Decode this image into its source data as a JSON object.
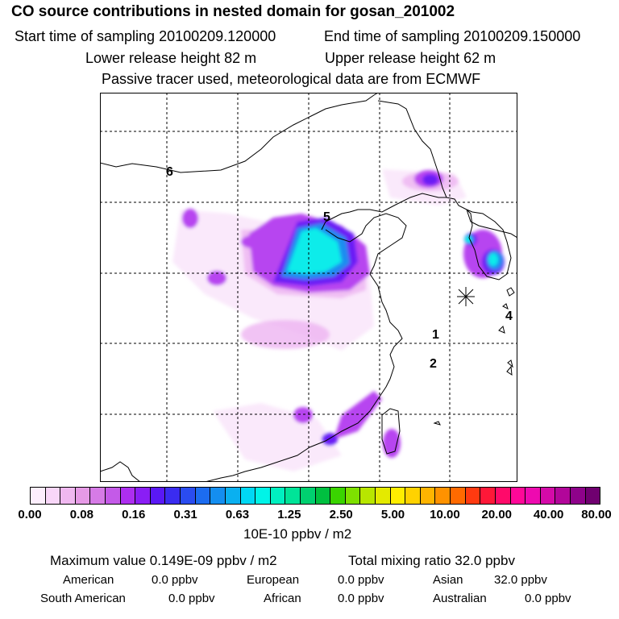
{
  "header": {
    "title": "CO  source contributions in nested domain for gosan_201002",
    "start_time": "Start time of sampling 20100209.120000",
    "end_time": "End time of sampling 20100209.150000",
    "lower_height": "Lower release height   82 m",
    "upper_height": "Upper release height   62 m",
    "tracer_note": "Passive tracer used, meteorological data are from ECMWF"
  },
  "map": {
    "region_labels": [
      "1",
      "2",
      "4",
      "5",
      "6"
    ],
    "station_marker": "receptor-star-icon"
  },
  "colorbar": {
    "colors": [
      "#fdeefd",
      "#f8d6f8",
      "#f0b8f0",
      "#e69ae6",
      "#d67be6",
      "#c45ae8",
      "#ad2ef0",
      "#8a1ef5",
      "#5a18f5",
      "#3a2cf0",
      "#2a4cf0",
      "#1c6cf0",
      "#148ef0",
      "#0ab0f0",
      "#00d8f4",
      "#00f4e8",
      "#00f0c0",
      "#00e498",
      "#00d070",
      "#00c040",
      "#3ad400",
      "#7ee000",
      "#b8e600",
      "#e4ea00",
      "#ffee00",
      "#ffd200",
      "#ffb400",
      "#ff9200",
      "#ff6a00",
      "#ff3a10",
      "#ff1838",
      "#ff0a6a",
      "#ff0898",
      "#ee0ab0",
      "#d40aa8",
      "#b2069a",
      "#8e028a",
      "#700070"
    ],
    "tick_labels": [
      "0.00",
      "0.08",
      "0.16",
      "0.31",
      "0.63",
      "1.25",
      "2.50",
      "5.00",
      "10.00",
      "20.00",
      "40.00",
      "80.00"
    ],
    "units": "10E-10 ppbv / m2"
  },
  "stats": {
    "max_value": "Maximum value  0.149E-09 ppbv / m2",
    "total_mixing": "Total mixing ratio       32.0 ppbv",
    "sources": [
      {
        "name": "American",
        "value": "0.0 ppbv"
      },
      {
        "name": "European",
        "value": "0.0 ppbv"
      },
      {
        "name": "Asian",
        "value": "32.0 ppbv"
      },
      {
        "name": "South American",
        "value": "0.0 ppbv"
      },
      {
        "name": "African",
        "value": "0.0 ppbv"
      },
      {
        "name": "Australian",
        "value": "0.0 ppbv"
      }
    ]
  }
}
